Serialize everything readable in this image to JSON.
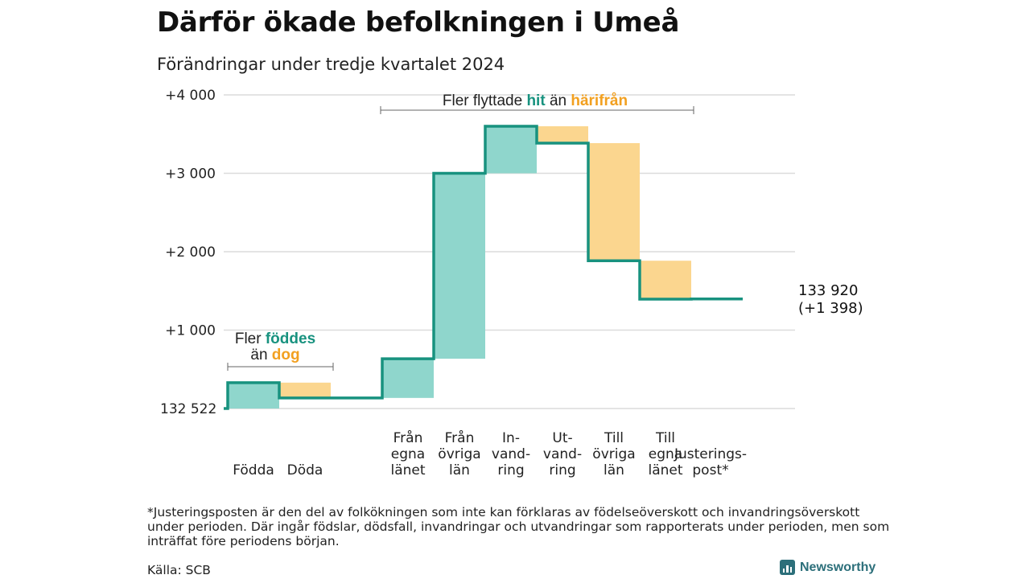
{
  "title": "Därför ökade befolkningen i Umeå",
  "subtitle": "Förändringar under tredje kvartalet 2024",
  "colors": {
    "increase": "#8fd6cc",
    "decrease": "#fbd68f",
    "line": "#18927f",
    "hit": "#18927f",
    "harifran": "#f2a020",
    "grid": "#dcdcdc"
  },
  "chart_data": {
    "type": "waterfall",
    "start_label": "132 522",
    "start_value": 132522,
    "end_value": 133920,
    "end_label_value": "133 920",
    "end_label_change": "(+1 398)",
    "ylim": [
      0,
      4000
    ],
    "yticks": [
      {
        "value": 4000,
        "label": "+4 000"
      },
      {
        "value": 3000,
        "label": "+3 000"
      },
      {
        "value": 2000,
        "label": "+2 000"
      },
      {
        "value": 1000,
        "label": "+1 000"
      }
    ],
    "steps": [
      {
        "category": [
          "Födda"
        ],
        "delta": 330,
        "from": 0,
        "to": 330
      },
      {
        "category": [
          "Döda"
        ],
        "delta": -195,
        "from": 330,
        "to": 135
      },
      {
        "category": [
          "",
          ""
        ],
        "delta": 0,
        "from": 135,
        "to": 135
      },
      {
        "category": [
          "Från",
          "egna",
          "länet"
        ],
        "delta": 500,
        "from": 135,
        "to": 635
      },
      {
        "category": [
          "Från",
          "övriga",
          "län"
        ],
        "delta": 2365,
        "from": 635,
        "to": 3000
      },
      {
        "category": [
          "In-",
          "vand-",
          "ring"
        ],
        "delta": 600,
        "from": 3000,
        "to": 3600
      },
      {
        "category": [
          "Ut-",
          "vand-",
          "ring"
        ],
        "delta": -215,
        "from": 3600,
        "to": 3385
      },
      {
        "category": [
          "Till",
          "övriga",
          "län"
        ],
        "delta": -1500,
        "from": 3385,
        "to": 1885
      },
      {
        "category": [
          "Till",
          "egna",
          "länet"
        ],
        "delta": -490,
        "from": 1885,
        "to": 1395
      },
      {
        "category": [
          "Justerings-",
          "post*"
        ],
        "delta": 3,
        "from": 1395,
        "to": 1398
      }
    ],
    "annotations": {
      "births": {
        "prefix": "Fler",
        "hl1": "föddes",
        "mid": "än",
        "hl2": "dog"
      },
      "migration": {
        "prefix": "Fler flyttade",
        "hl1": "hit",
        "mid": "än",
        "hl2": "härifrån"
      }
    }
  },
  "footnote": "*Justeringsposten är den del av folkökningen som inte kan förklaras av födelseöverskott och invandringsöverskott under perioden. Där ingår födslar, dödsfall, invandringar och utvandringar som rapporterats under perioden, men som inträffat före periodens början.",
  "source": "Källa: SCB",
  "brand": "Newsworthy"
}
